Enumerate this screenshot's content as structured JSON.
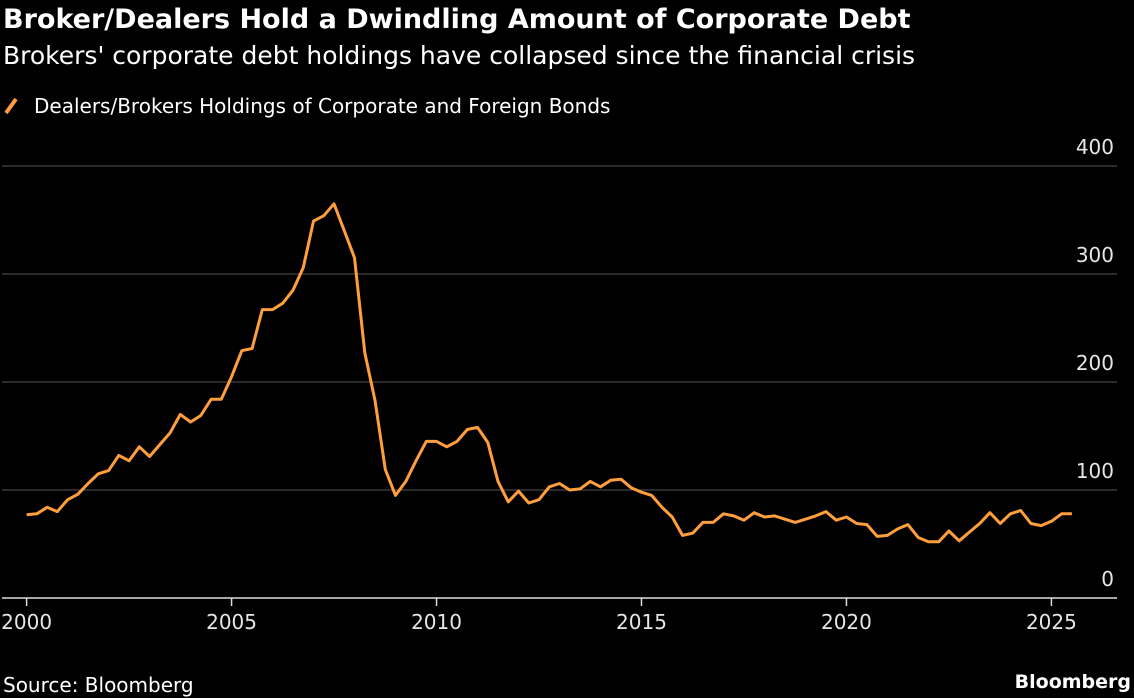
{
  "chart_data": {
    "type": "line",
    "title": "Broker/Dealers Hold a Dwindling Amount of Corporate Debt",
    "subtitle": "Brokers' corporate debt holdings have collapsed since the financial crisis",
    "source": "Source: Bloomberg",
    "logo": "Bloomberg",
    "x": [
      2000,
      2000.25,
      2000.5,
      2000.75,
      2001,
      2001.25,
      2001.5,
      2001.75,
      2002,
      2002.25,
      2002.5,
      2002.75,
      2003,
      2003.25,
      2003.5,
      2003.75,
      2004,
      2004.25,
      2004.5,
      2004.75,
      2005,
      2005.25,
      2005.5,
      2005.75,
      2006,
      2006.25,
      2006.5,
      2006.75,
      2007,
      2007.25,
      2007.5,
      2007.75,
      2008,
      2008.25,
      2008.5,
      2008.75,
      2009,
      2009.25,
      2009.5,
      2009.75,
      2010,
      2010.25,
      2010.5,
      2010.75,
      2011,
      2011.25,
      2011.5,
      2011.75,
      2012,
      2012.25,
      2012.5,
      2012.75,
      2013,
      2013.25,
      2013.5,
      2013.75,
      2014,
      2014.25,
      2014.5,
      2014.75,
      2015,
      2015.25,
      2015.5,
      2015.75,
      2016,
      2016.25,
      2016.5,
      2016.75,
      2017,
      2017.25,
      2017.5,
      2017.75,
      2018,
      2018.25,
      2018.5,
      2018.75,
      2019,
      2019.25,
      2019.5,
      2019.75,
      2020,
      2020.25,
      2020.5,
      2020.75,
      2021,
      2021.25,
      2021.5,
      2021.75,
      2022,
      2022.25,
      2022.5,
      2022.75,
      2023,
      2023.25,
      2023.5,
      2023.75,
      2024,
      2024.25,
      2024.5,
      2024.75,
      2025,
      2025.25,
      2025.5
    ],
    "series": [
      {
        "name": "Dealers/Brokers Holdings of Corporate and Foreign Bonds",
        "color": "#ff9e3d",
        "values": [
          77,
          78,
          84,
          80,
          91,
          96,
          106,
          115,
          118,
          132,
          127,
          140,
          131,
          142,
          153,
          170,
          163,
          169,
          184,
          184,
          205,
          229,
          231,
          267,
          267,
          273,
          285,
          306,
          349,
          354,
          365,
          340,
          315,
          227,
          183,
          119,
          95,
          108,
          127,
          145,
          145,
          140,
          145,
          156,
          158,
          144,
          108,
          89,
          99,
          88,
          91,
          103,
          106,
          100,
          101,
          108,
          103,
          109,
          110,
          102,
          98,
          95,
          84,
          75,
          58,
          60,
          70,
          70,
          78,
          76,
          72,
          79,
          75,
          76,
          73,
          70,
          73,
          76,
          80,
          72,
          75,
          69,
          68,
          57,
          58,
          64,
          68,
          56,
          52,
          52,
          62,
          53,
          61,
          69,
          79,
          69,
          78,
          81,
          69,
          67,
          71,
          78,
          78
        ]
      }
    ],
    "xlim": [
      1999.4,
      2026.6
    ],
    "xticks": [
      2000,
      2005,
      2010,
      2015,
      2020,
      2025
    ],
    "ylim": [
      0,
      400
    ],
    "yticks": [
      0,
      100,
      200,
      300,
      400
    ],
    "grid": true
  }
}
